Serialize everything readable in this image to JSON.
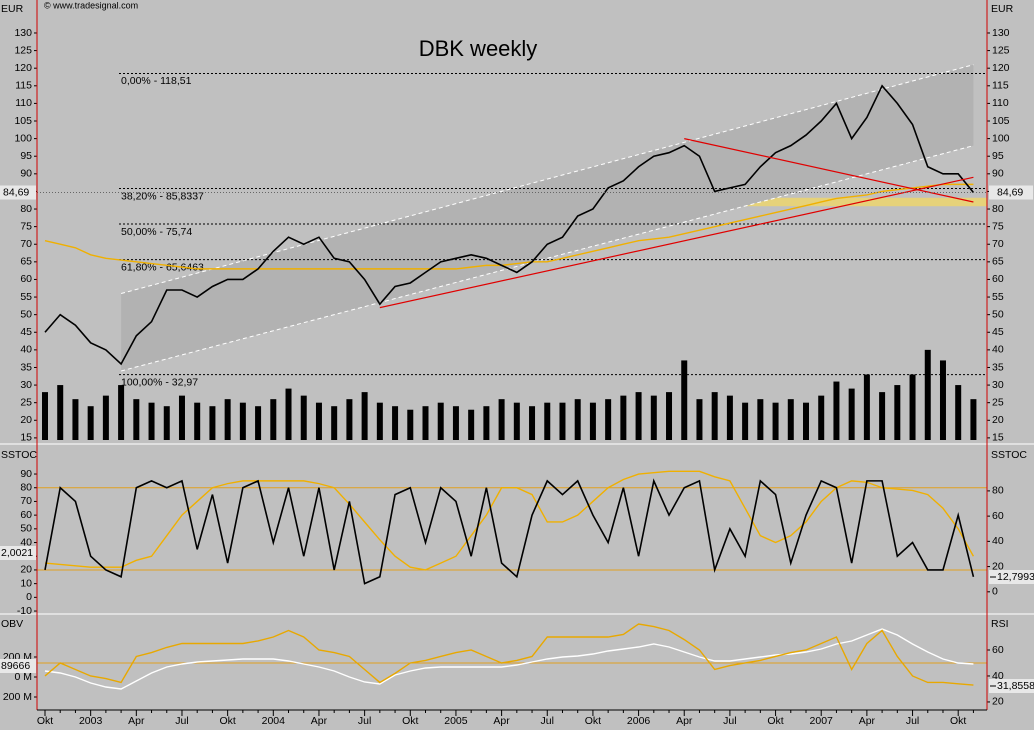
{
  "chart_data": [
    {
      "type": "line",
      "title": "DBK weekly",
      "source": "© www.tradesignal.com",
      "y_label": "EUR",
      "ylim": [
        14.4,
        138.8
      ],
      "yticks": [
        15,
        20,
        25,
        30,
        35,
        40,
        45,
        50,
        55,
        60,
        65,
        70,
        75,
        80,
        85,
        90,
        95,
        100,
        105,
        110,
        115,
        120,
        125,
        130
      ],
      "zone": {
        "range": [
          80.8,
          83.2
        ],
        "color": "#e6d27a"
      },
      "channel": {
        "color": "#ffffff",
        "fill": "#b2b2b2",
        "x": [
          5,
          61
        ],
        "upper": [
          56,
          121
        ],
        "lower": [
          34,
          98
        ]
      },
      "fib_levels": [
        {
          "value": 118.51,
          "label": "0,00% - 118,51"
        },
        {
          "value": 85.8337,
          "label": "38,20% - 85,8337"
        },
        {
          "value": 75.74,
          "label": "50,00% - 75,74"
        },
        {
          "value": 65.6463,
          "label": "61,80% - 65,6463"
        },
        {
          "value": 32.97,
          "label": "100,00% - 32,97"
        }
      ],
      "trendlines": [
        {
          "color": "#e00000",
          "x": [
            22,
            61
          ],
          "values": [
            52,
            89
          ]
        },
        {
          "color": "#e00000",
          "x": [
            42,
            61
          ],
          "values": [
            100,
            82
          ]
        }
      ],
      "series": [
        {
          "style": "bar",
          "color": "#000000",
          "values": [
            28,
            30,
            26,
            24,
            27,
            30,
            26,
            25,
            24,
            27,
            25,
            24,
            26,
            25,
            24,
            26,
            29,
            27,
            25,
            24,
            26,
            28,
            25,
            24,
            23,
            24,
            25,
            24,
            23,
            24,
            26,
            25,
            24,
            25,
            25,
            26,
            25,
            26,
            27,
            28,
            27,
            28,
            37,
            26,
            28,
            27,
            25,
            26,
            25,
            26,
            25,
            27,
            31,
            29,
            33,
            28,
            30,
            33,
            40,
            37,
            30,
            26
          ]
        },
        {
          "style": "line",
          "color": "#f0b000",
          "values": [
            71,
            70,
            69,
            67,
            66,
            65.5,
            65,
            64.5,
            64,
            63.5,
            63,
            63,
            63,
            63,
            63,
            63,
            63,
            63,
            63,
            63,
            63,
            63,
            63,
            63,
            63,
            63,
            63,
            63,
            63.5,
            64,
            64,
            64.5,
            65,
            65,
            66,
            67,
            68,
            69,
            70,
            71,
            71.5,
            72,
            73,
            74,
            75,
            76,
            77,
            78,
            79,
            80,
            81,
            82,
            83,
            83.5,
            84,
            85,
            85.5,
            86,
            86.5,
            87,
            87,
            87
          ]
        },
        {
          "style": "line",
          "color": "#000000",
          "values": [
            45,
            50,
            47,
            42,
            40,
            36,
            44,
            48,
            57,
            57,
            55,
            58,
            60,
            60,
            63,
            68,
            72,
            70,
            72,
            66,
            65,
            60,
            53,
            58,
            59,
            62,
            65,
            66,
            67,
            66,
            64,
            62,
            65,
            70,
            72,
            78,
            80,
            86,
            88,
            92,
            95,
            96,
            98,
            95,
            85,
            86,
            87,
            92,
            96,
            98,
            101,
            105,
            110,
            100,
            106,
            115,
            110,
            104,
            92,
            90,
            90,
            84.69
          ]
        }
      ],
      "last_value": {
        "value": 84.69,
        "label": "84,69"
      }
    },
    {
      "type": "line",
      "y_label": "SSTOC",
      "ylim": [
        -10.7,
        109
      ],
      "yticks": [
        -10,
        0,
        10,
        20,
        30,
        40,
        50,
        60,
        70,
        80,
        90
      ],
      "y2lim": [
        -16,
        114
      ],
      "y2ticks": [
        0,
        20,
        40,
        60,
        80
      ],
      "levels": [
        20,
        80
      ],
      "level_color": "#e0a020",
      "series": [
        {
          "style": "line",
          "color": "#f0b000",
          "values": [
            25,
            24,
            23,
            22,
            22,
            22,
            27,
            30,
            45,
            60,
            70,
            80,
            83,
            85,
            85,
            85,
            85,
            85,
            83,
            80,
            68,
            55,
            42,
            30,
            22,
            20,
            25,
            30,
            45,
            60,
            80,
            80,
            75,
            55,
            55,
            60,
            70,
            80,
            86,
            90,
            91,
            92,
            92,
            92,
            88,
            85,
            65,
            45,
            40,
            45,
            55,
            70,
            80,
            85,
            84,
            80,
            79,
            78,
            75,
            65,
            50,
            30
          ]
        },
        {
          "style": "line",
          "color": "#000000",
          "values": [
            20,
            80,
            70,
            30,
            20,
            15,
            80,
            85,
            80,
            85,
            35,
            75,
            25,
            80,
            85,
            40,
            80,
            30,
            80,
            20,
            70,
            10,
            15,
            75,
            80,
            40,
            80,
            70,
            30,
            80,
            25,
            15,
            60,
            85,
            75,
            85,
            60,
            40,
            80,
            30,
            85,
            60,
            80,
            85,
            20,
            50,
            30,
            85,
            75,
            25,
            60,
            85,
            80,
            25,
            85,
            85,
            30,
            40,
            20,
            20,
            60,
            15
          ]
        }
      ],
      "left_marker": "2,0021",
      "right_marker": "12,7993"
    },
    {
      "type": "line",
      "y_label": "OBV",
      "y2_label": "RSI",
      "ylim": [
        -330,
        600
      ],
      "yticks": [
        {
          "value": -200,
          "label": "200 M"
        },
        {
          "value": 0,
          "label": "0 M"
        },
        {
          "value": 200,
          "label": "200 M"
        }
      ],
      "y2lim": [
        13.8,
        85.4
      ],
      "y2ticks": [
        20,
        40,
        60
      ],
      "y2levels": [
        50
      ],
      "level_color": "#e0a020",
      "series": [
        {
          "style": "line",
          "color": "#ffffff",
          "values": [
            60,
            40,
            0,
            -60,
            -100,
            -120,
            -40,
            40,
            100,
            130,
            150,
            160,
            170,
            180,
            180,
            180,
            160,
            130,
            100,
            60,
            0,
            -50,
            -70,
            20,
            60,
            90,
            100,
            100,
            100,
            100,
            100,
            120,
            150,
            180,
            200,
            210,
            230,
            260,
            280,
            300,
            330,
            300,
            250,
            200,
            160,
            160,
            180,
            200,
            220,
            230,
            250,
            280,
            330,
            360,
            420,
            480,
            420,
            330,
            250,
            180,
            140,
            130
          ]
        },
        {
          "style": "line",
          "color": "#e8a800",
          "axis": "y2",
          "values": [
            40,
            50,
            45,
            40,
            38,
            35,
            55,
            58,
            62,
            65,
            65,
            65,
            65,
            65,
            67,
            70,
            75,
            70,
            60,
            58,
            55,
            45,
            35,
            42,
            50,
            52,
            55,
            58,
            60,
            55,
            50,
            52,
            55,
            70,
            70,
            70,
            70,
            70,
            72,
            80,
            78,
            75,
            68,
            60,
            45,
            48,
            50,
            52,
            55,
            58,
            60,
            65,
            70,
            45,
            65,
            75,
            55,
            40,
            35,
            35,
            34,
            33
          ]
        }
      ],
      "left_marker": "89666",
      "right_marker": "31,8558",
      "categories": [
        "Okt",
        null,
        null,
        "2003",
        null,
        null,
        "Apr",
        null,
        null,
        "Jul",
        null,
        null,
        "Okt",
        null,
        null,
        "2004",
        null,
        null,
        "Apr",
        null,
        null,
        "Jul",
        null,
        null,
        "Okt",
        null,
        null,
        "2005",
        null,
        null,
        "Apr",
        null,
        null,
        "Jul",
        null,
        null,
        "Okt",
        null,
        null,
        "2006",
        null,
        null,
        "Apr",
        null,
        null,
        "Jul",
        null,
        null,
        "Okt",
        null,
        null,
        "2007",
        null,
        null,
        "Apr",
        null,
        null,
        "Jul",
        null,
        null,
        "Okt",
        null
      ]
    }
  ]
}
